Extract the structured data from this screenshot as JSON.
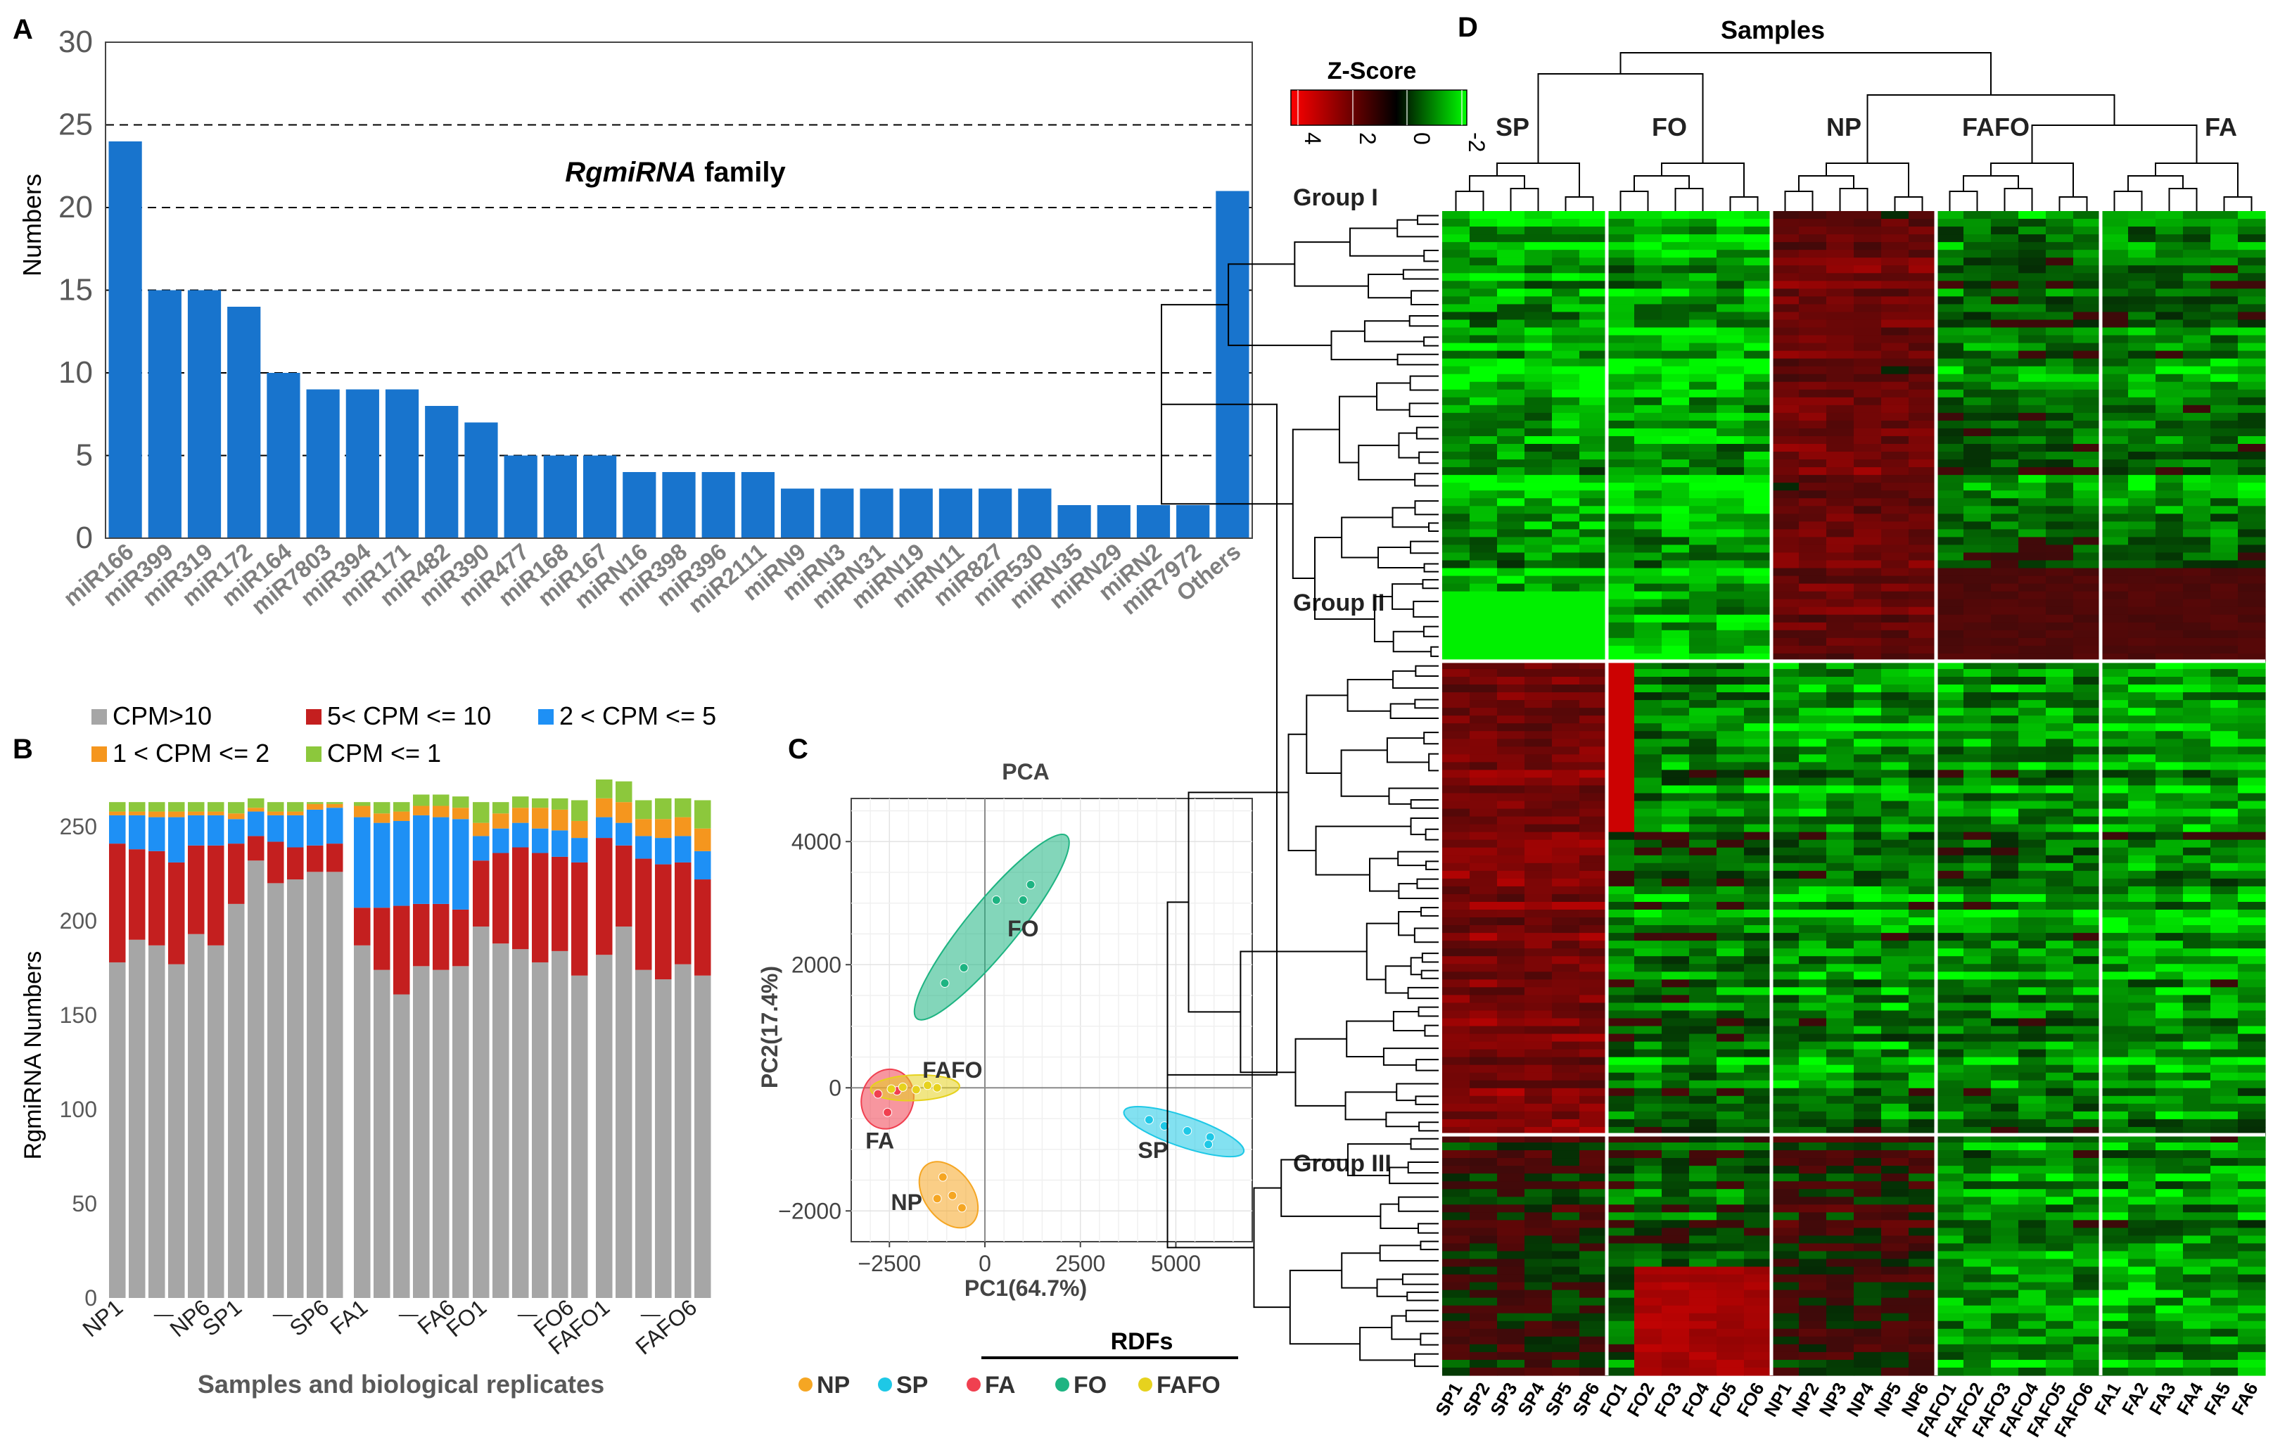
{
  "panel_labels": {
    "a": "A",
    "b": "B",
    "c": "C",
    "d": "D"
  },
  "colors": {
    "bar_blue": "#1874CD",
    "cpm_gray": "#A6A6A6",
    "cpm_red": "#C41F1F",
    "cpm_blue": "#1E90F5",
    "cpm_orange": "#F5961E",
    "cpm_green": "#8CC83C",
    "np": "#F5A623",
    "sp": "#1EC8E6",
    "fa": "#F04050",
    "fo": "#1EB482",
    "fafo": "#E6D21E",
    "heat_red": "#FF0000",
    "heat_black": "#000000",
    "heat_green": "#00FF00"
  },
  "chart_data": [
    {
      "id": "A",
      "type": "bar",
      "title": "RgmiRNA family",
      "title_italic": "RgmiRNA",
      "title_rest": " family",
      "xlabel": "",
      "ylabel": "Numbers",
      "ylim": [
        0,
        30
      ],
      "yticks": [
        0,
        5,
        10,
        15,
        20,
        25,
        30
      ],
      "grid": "dashed horizontal",
      "categories": [
        "miR166",
        "miR399",
        "miR319",
        "miR172",
        "miR164",
        "miR7803",
        "miR394",
        "miR171",
        "miR482",
        "miR390",
        "miR477",
        "miR168",
        "miR167",
        "miRN16",
        "miR398",
        "miR396",
        "miR2111",
        "miRN9",
        "miRN3",
        "miRN31",
        "miRN19",
        "miRN11",
        "miR827",
        "miR530",
        "miRN35",
        "miRN29",
        "miRN2",
        "miR7972",
        "Others"
      ],
      "values": [
        24,
        15,
        15,
        14,
        10,
        9,
        9,
        9,
        8,
        7,
        5,
        5,
        5,
        4,
        4,
        4,
        4,
        3,
        3,
        3,
        3,
        3,
        3,
        3,
        2,
        2,
        2,
        2,
        21
      ]
    },
    {
      "id": "B",
      "type": "bar",
      "stacked": true,
      "xlabel": "Samples and biological replicates",
      "ylabel": "RgmiRNA Numbers",
      "ylim": [
        0,
        260
      ],
      "yticks": [
        0,
        50,
        100,
        150,
        200,
        250
      ],
      "legend_position": "top",
      "group_tick_labels": [
        "NP1",
        "NP6",
        "SP1",
        "SP6",
        "FA1",
        "FA6",
        "FO1",
        "FO6",
        "FAFO1",
        "FAFO6"
      ],
      "groups": [
        {
          "name": "NP",
          "replicates": 6
        },
        {
          "name": "SP",
          "replicates": 6
        },
        {
          "name": "FA",
          "replicates": 6
        },
        {
          "name": "FO",
          "replicates": 6
        },
        {
          "name": "FAFO",
          "replicates": 6
        }
      ],
      "series": [
        {
          "name": "CPM>10",
          "color_key": "cpm_gray",
          "values": [
            178,
            190,
            187,
            177,
            193,
            187,
            209,
            232,
            220,
            222,
            226,
            226,
            187,
            174,
            161,
            176,
            174,
            176,
            197,
            188,
            185,
            178,
            184,
            171,
            182,
            197,
            174,
            169,
            177,
            171
          ]
        },
        {
          "name": "5< CPM <= 10",
          "color_key": "cpm_red",
          "values": [
            63,
            48,
            50,
            54,
            47,
            53,
            32,
            13,
            22,
            17,
            14,
            15,
            20,
            33,
            47,
            33,
            35,
            30,
            35,
            48,
            54,
            58,
            50,
            60,
            62,
            43,
            59,
            61,
            54,
            51
          ]
        },
        {
          "name": "2 < CPM <= 5",
          "color_key": "cpm_blue",
          "values": [
            15,
            18,
            18,
            24,
            16,
            16,
            13,
            13,
            14,
            17,
            19,
            19,
            48,
            45,
            45,
            47,
            46,
            48,
            13,
            13,
            13,
            13,
            14,
            13,
            11,
            12,
            12,
            14,
            14,
            15
          ]
        },
        {
          "name": "1 < CPM <= 2",
          "color_key": "cpm_orange",
          "values": [
            2,
            2,
            3,
            3,
            2,
            2,
            3,
            2,
            2,
            2,
            3,
            2,
            6,
            5,
            5,
            5,
            6,
            6,
            7,
            8,
            8,
            11,
            11,
            9,
            10,
            11,
            9,
            10,
            10,
            12
          ]
        },
        {
          "name": "CPM <= 1",
          "color_key": "cpm_green",
          "values": [
            5,
            5,
            5,
            5,
            5,
            5,
            6,
            5,
            5,
            5,
            1,
            1,
            2,
            6,
            5,
            6,
            6,
            6,
            11,
            6,
            6,
            5,
            6,
            11,
            10,
            11,
            10,
            11,
            10,
            15
          ]
        }
      ]
    },
    {
      "id": "C",
      "type": "scatter",
      "title": "PCA",
      "xlabel": "PC1(64.7%)",
      "ylabel": "PC2(17.4%)",
      "xlim": [
        -3500,
        7000
      ],
      "ylim": [
        -2500,
        4700
      ],
      "xticks": [
        -2500,
        0,
        2500,
        5000
      ],
      "yticks": [
        -2000,
        0,
        2000,
        4000
      ],
      "grid": true,
      "legend_position": "bottom",
      "legend_header": "RDFs",
      "series": [
        {
          "name": "NP",
          "color_key": "np",
          "x": [
            -1100,
            -1250,
            -850,
            -600
          ],
          "y": [
            -1450,
            -1800,
            -1750,
            -1950
          ]
        },
        {
          "name": "SP",
          "color_key": "sp",
          "x": [
            4300,
            4700,
            5300,
            5900,
            5850
          ],
          "y": [
            -520,
            -620,
            -700,
            -800,
            -920
          ]
        },
        {
          "name": "FA",
          "color_key": "fa",
          "x": [
            -2800,
            -2550,
            -2300
          ],
          "y": [
            -100,
            -400,
            -50
          ]
        },
        {
          "name": "FO",
          "color_key": "fo",
          "x": [
            -1050,
            -550,
            300,
            1000,
            1200
          ],
          "y": [
            1700,
            1950,
            3050,
            3050,
            3300
          ]
        },
        {
          "name": "FAFO",
          "color_key": "fafo",
          "x": [
            -2450,
            -2150,
            -1800,
            -1500,
            -1250
          ],
          "y": [
            -20,
            10,
            -30,
            40,
            0
          ]
        }
      ],
      "annotations": [
        "FO",
        "FAFO",
        "FA",
        "SP",
        "NP"
      ]
    },
    {
      "id": "D",
      "type": "heatmap",
      "title": "Samples",
      "colorbar_title": "Z-Score",
      "colorbar_ticks": [
        "4",
        "2",
        "0",
        "-2"
      ],
      "column_groups": [
        "SP",
        "FO",
        "NP",
        "FAFO",
        "FA"
      ],
      "columns": [
        "SP1",
        "SP2",
        "SP3",
        "SP4",
        "SP5",
        "SP6",
        "FO1",
        "FO2",
        "FO3",
        "FO4",
        "FO5",
        "FO6",
        "NP1",
        "NP2",
        "NP3",
        "NP4",
        "NP5",
        "NP6",
        "FAFO1",
        "FAFO2",
        "FAFO3",
        "FAFO4",
        "FAFO5",
        "FAFO6",
        "FA1",
        "FA2",
        "FA3",
        "FA4",
        "FA5",
        "FA6"
      ],
      "row_groups": [
        "Group I",
        "Group II",
        "Group III"
      ],
      "value_range": [
        -2,
        4
      ]
    }
  ]
}
